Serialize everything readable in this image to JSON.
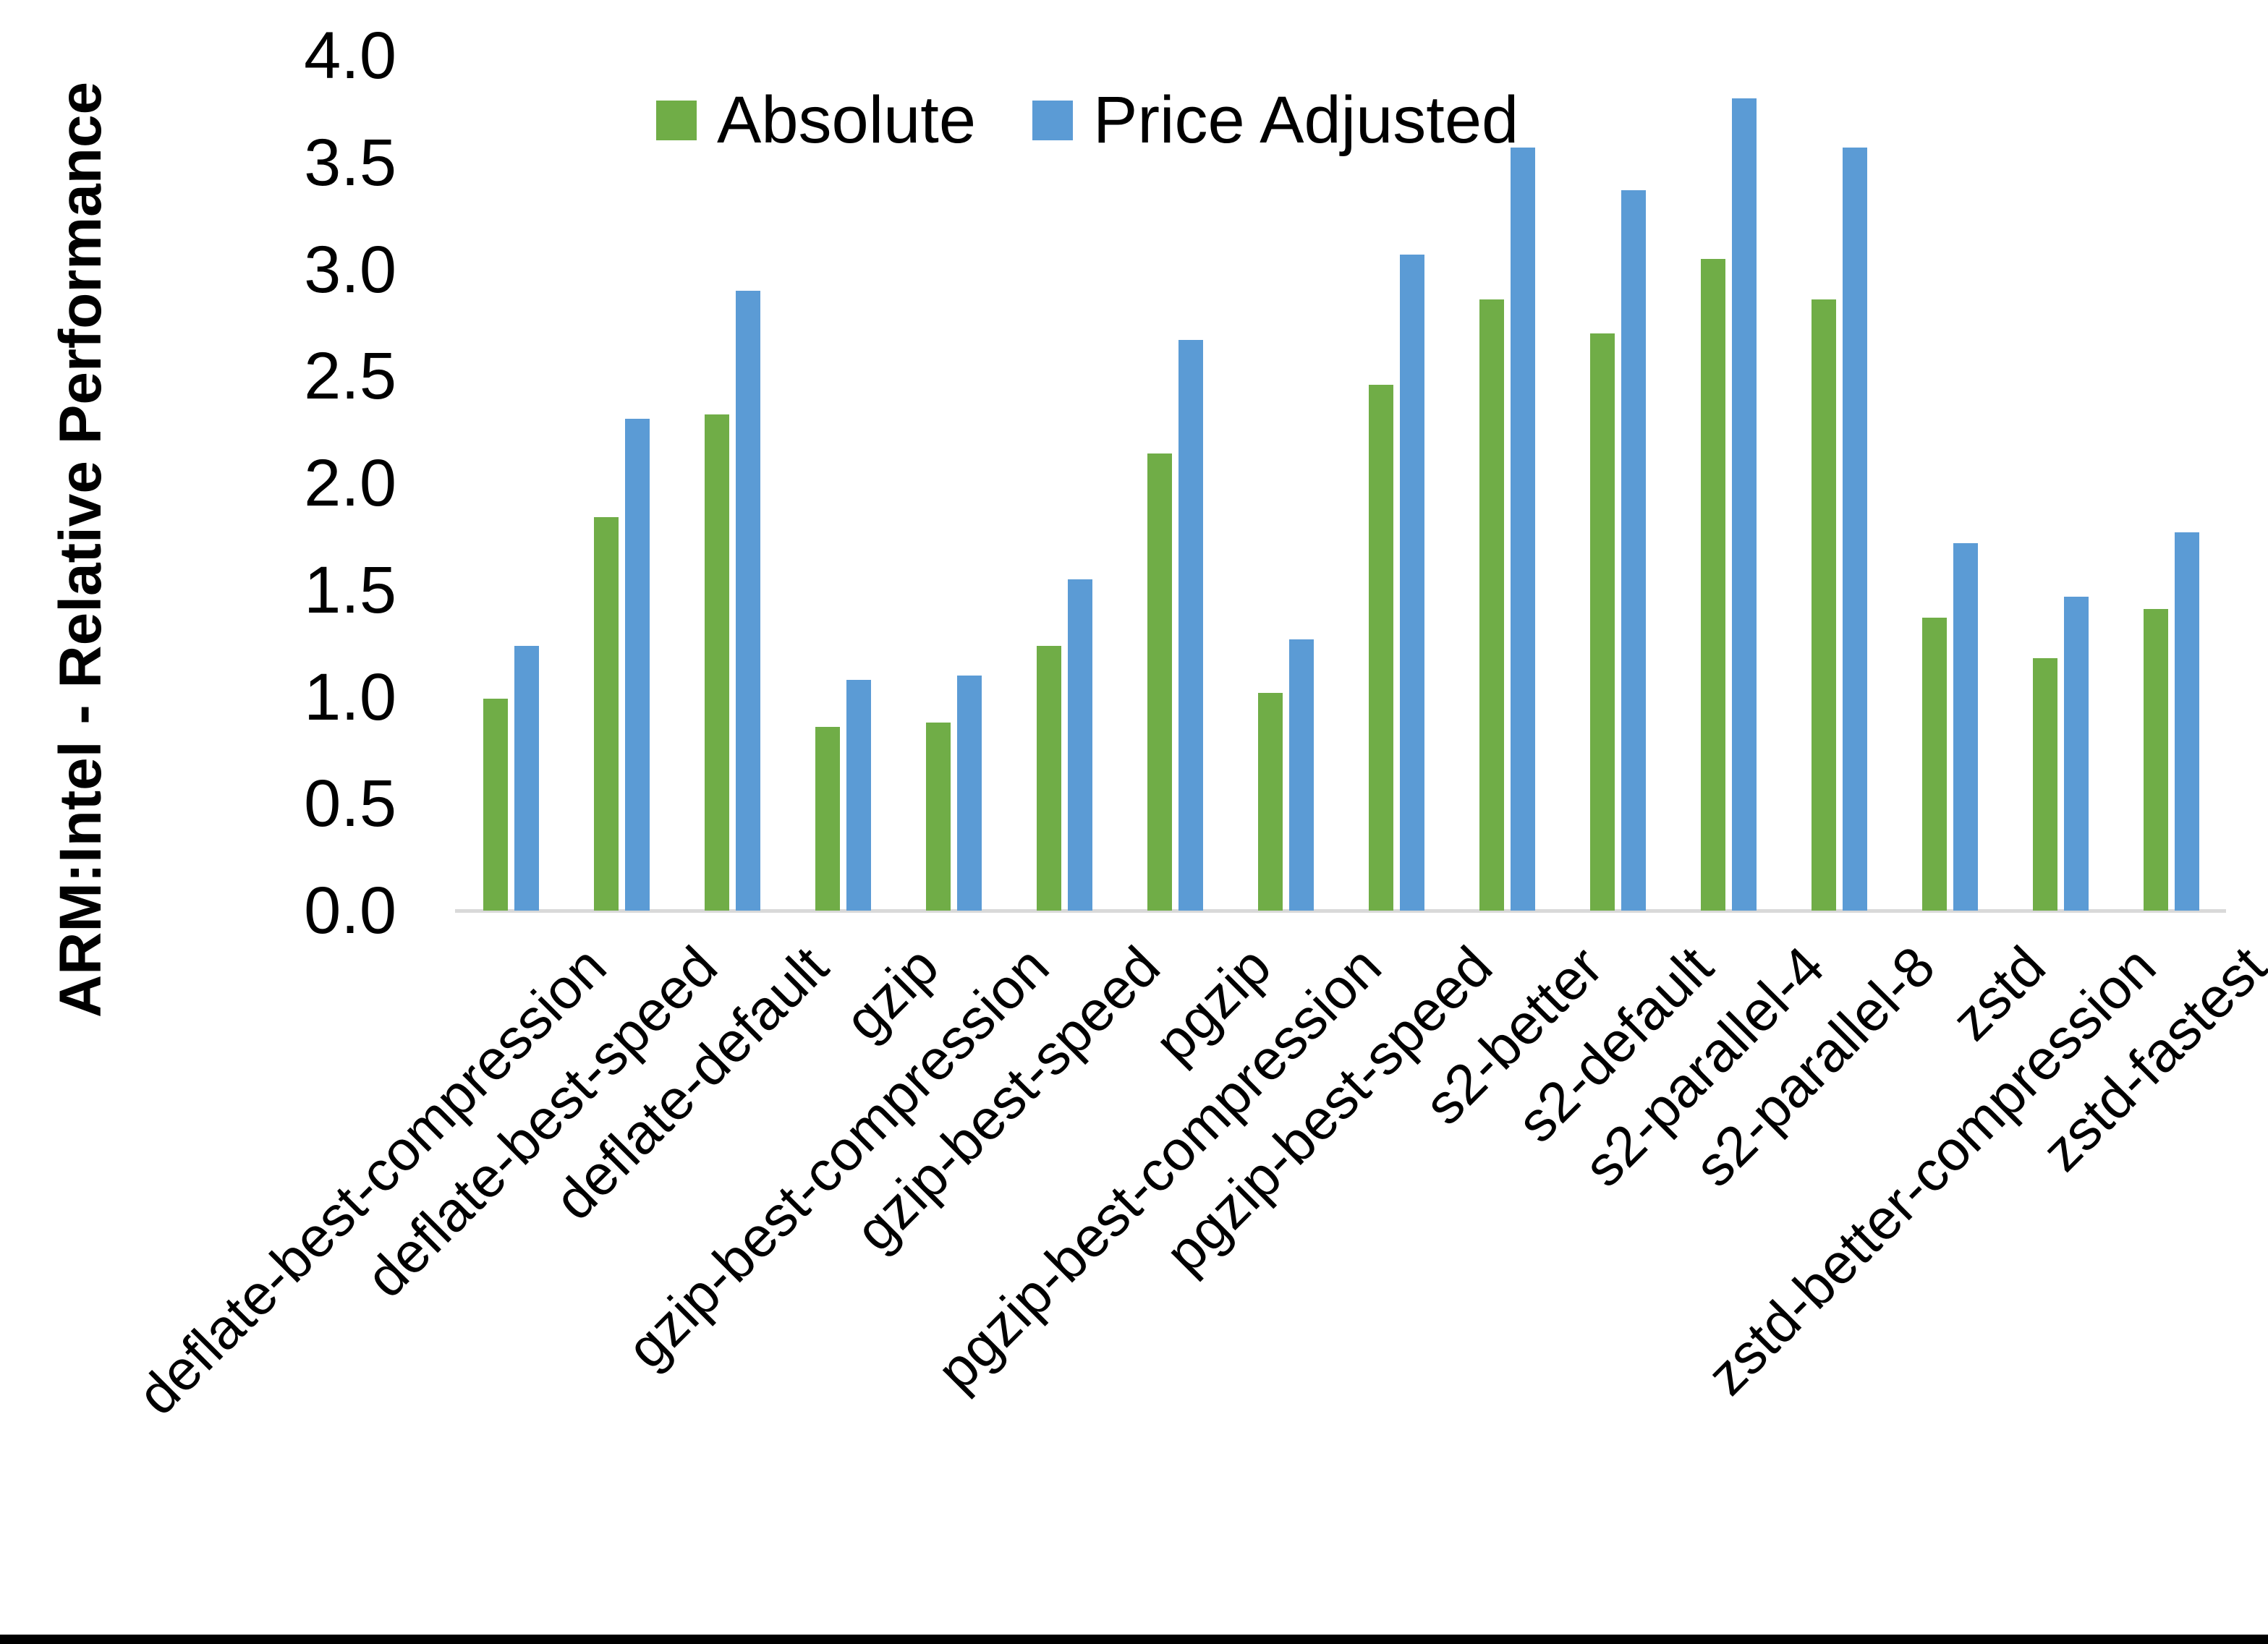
{
  "chart_data": {
    "type": "bar",
    "title": "",
    "xlabel": "",
    "ylabel": "ARM:Intel - Relative Performance",
    "ylim": [
      0.0,
      4.0
    ],
    "ytick_step": 0.5,
    "yticks": [
      "0.0",
      "0.5",
      "1.0",
      "1.5",
      "2.0",
      "2.5",
      "3.0",
      "3.5",
      "4.0"
    ],
    "grid": false,
    "legend_position": "top-center",
    "categories": [
      "deflate-best-compression",
      "deflate-best-speed",
      "deflate-default",
      "gzip",
      "gzip-best-compression",
      "gzip-best-speed",
      "pgzip",
      "pgzip-best-compression",
      "pgzip-best-speed",
      "s2-better",
      "s2-default",
      "s2-parallel-4",
      "s2-parallel-8",
      "zstd",
      "zstd-better-compression",
      "zstd-fastest"
    ],
    "series": [
      {
        "name": "Absolute",
        "color": "#70AD47",
        "values": [
          0.99,
          1.84,
          2.32,
          0.86,
          0.88,
          1.24,
          2.14,
          1.02,
          2.46,
          2.86,
          2.7,
          3.05,
          2.86,
          1.37,
          1.18,
          1.41
        ]
      },
      {
        "name": "Price Adjusted",
        "color": "#5B9BD5",
        "values": [
          1.24,
          2.3,
          2.9,
          1.08,
          1.1,
          1.55,
          2.67,
          1.27,
          3.07,
          3.57,
          3.37,
          3.8,
          3.57,
          1.72,
          1.47,
          1.77
        ]
      }
    ],
    "style": {
      "axis_line_color": "#D9D9D9",
      "text_color": "#000000",
      "background_color": "#FFFFFF",
      "bottom_border_color": "#000000"
    }
  }
}
